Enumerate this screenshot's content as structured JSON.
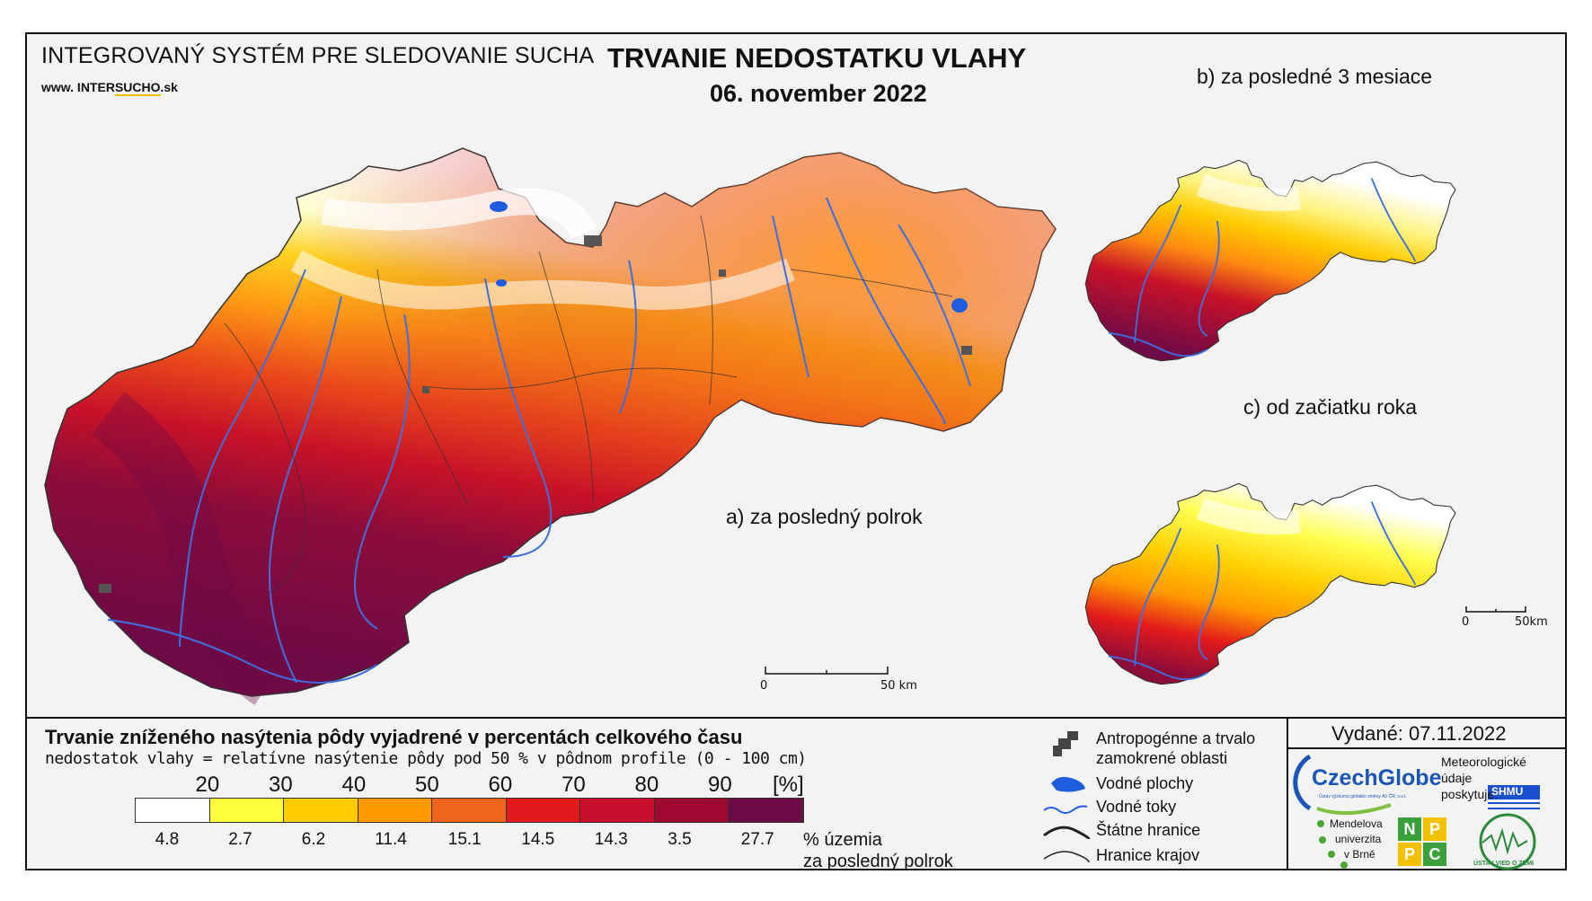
{
  "header": {
    "system_title": "INTEGROVANÝ SYSTÉM PRE SLEDOVANIE SUCHA",
    "website_prefix": "www. INTER",
    "website_highlight": "SUCHO",
    "website_suffix": ".sk",
    "main_title": "TRVANIE NEDOSTATKU VLAHY",
    "date": "06. november 2022"
  },
  "maps": {
    "a_label": "a) za posledný polrok",
    "b_label": "b) za posledné 3 mesiace",
    "c_label": "c) od začiatku roka",
    "scale_a_start": "0",
    "scale_a_end": "50 km",
    "scale_c_start": "0",
    "scale_c_end": "50km"
  },
  "legend": {
    "title": "Trvanie zníženého nasýtenia pôdy vyjadrené v percentách celkového času",
    "subtitle": "nedostatok vlahy = relatívne nasýtenie pôdy pod 50 % v pôdnom profile (0 - 100 cm)",
    "ticks": [
      "20",
      "30",
      "40",
      "50",
      "60",
      "70",
      "80",
      "90"
    ],
    "unit": "[%]",
    "colors": [
      "#ffffff",
      "#ffff3c",
      "#ffcc00",
      "#ff9900",
      "#f0641e",
      "#e31a1c",
      "#c8102e",
      "#a00a32",
      "#6e0a46"
    ],
    "percentages": [
      "4.8",
      "2.7",
      "6.2",
      "11.4",
      "15.1",
      "14.5",
      "14.3",
      "3.5",
      "27.7"
    ],
    "pct_unit_line1": "% územia",
    "pct_unit_line2": "za posledný polrok"
  },
  "symbols": {
    "anthropogenic": "Antropogénne a trvalo zamokrené oblasti",
    "anthropogenic_line1": "Antropogénne a trvalo",
    "anthropogenic_line2": "zamokrené oblasti",
    "water_bodies": "Vodné plochy",
    "rivers": "Vodné toky",
    "state_borders": "Štátne hranice",
    "region_borders": "Hranice krajov"
  },
  "issued": {
    "text": "Vydané: 07.11.2022"
  },
  "logos": {
    "czechglobe": "CzechGlobe",
    "czechglobe_sub": "Ústav výzkumu globální změny AV ČR, v.v.i.",
    "met_line1": "Meteorologické",
    "met_line2": "údaje",
    "met_line3": "poskytuje:",
    "shmu": "SHMU",
    "mendel_line1": "Mendelova",
    "mendel_line2": "univerzita",
    "mendel_line3": "v Brně",
    "nppc": [
      "N",
      "P",
      "P",
      "C"
    ],
    "ustav": "ÚSTAV VIED O ZEMI"
  }
}
